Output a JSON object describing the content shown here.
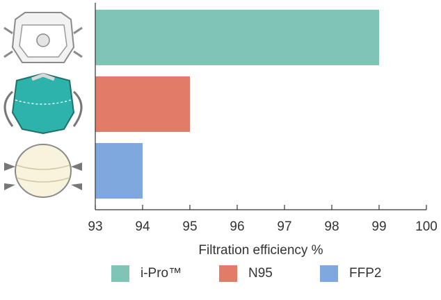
{
  "chart_data": {
    "type": "bar",
    "orientation": "horizontal",
    "categories": [
      "i-Pro™",
      "N95",
      "FFP2"
    ],
    "values": [
      99,
      95,
      94
    ],
    "colors": [
      "#7fc4b4",
      "#e27c68",
      "#7ea8de"
    ],
    "xlabel": "Filtration efficiency %",
    "ylabel": "",
    "title": "",
    "xlim": [
      93,
      100
    ],
    "xticks": [
      "93",
      "94",
      "95",
      "96",
      "97",
      "98",
      "99",
      "100"
    ],
    "grid": false,
    "legend_position": "bottom",
    "category_icons": [
      "i-pro-mask-icon",
      "n95-mask-icon",
      "ffp2-mask-icon"
    ]
  }
}
